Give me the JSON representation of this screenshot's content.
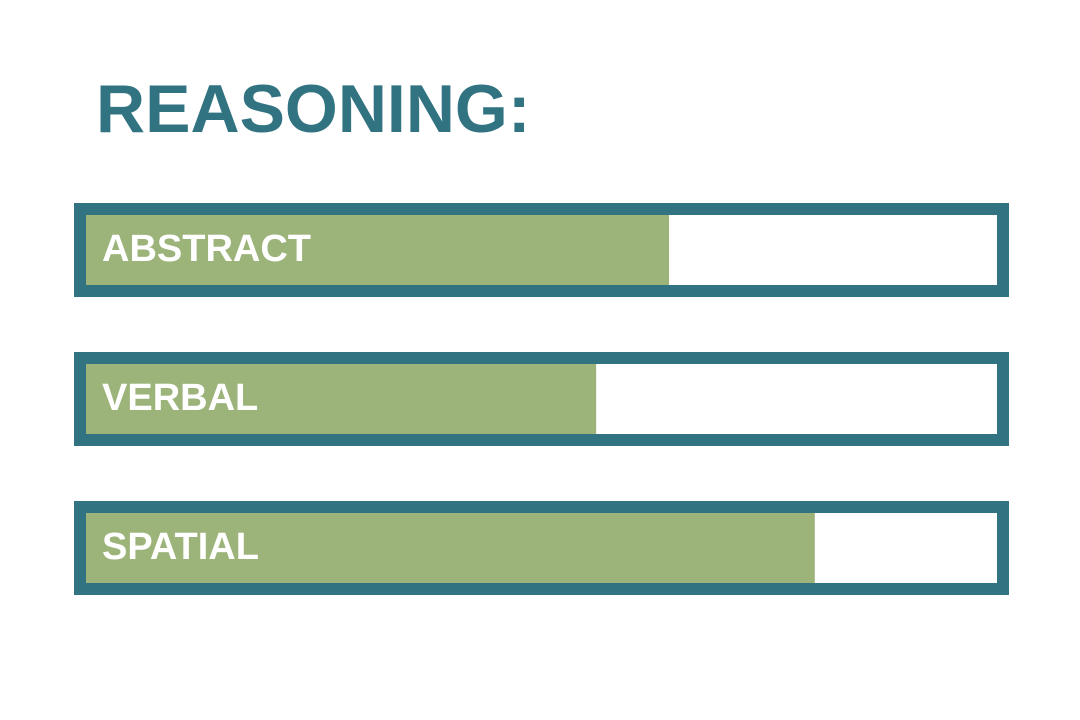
{
  "chart_data": {
    "type": "progress",
    "title": "REASONING:",
    "categories": [
      "ABSTRACT",
      "VERBAL",
      "SPATIAL"
    ],
    "values": [
      64,
      56,
      80
    ],
    "xlim": [
      0,
      100
    ],
    "color": "#9cb37a",
    "border_color": "#327382",
    "track_color": "#ffffff"
  }
}
